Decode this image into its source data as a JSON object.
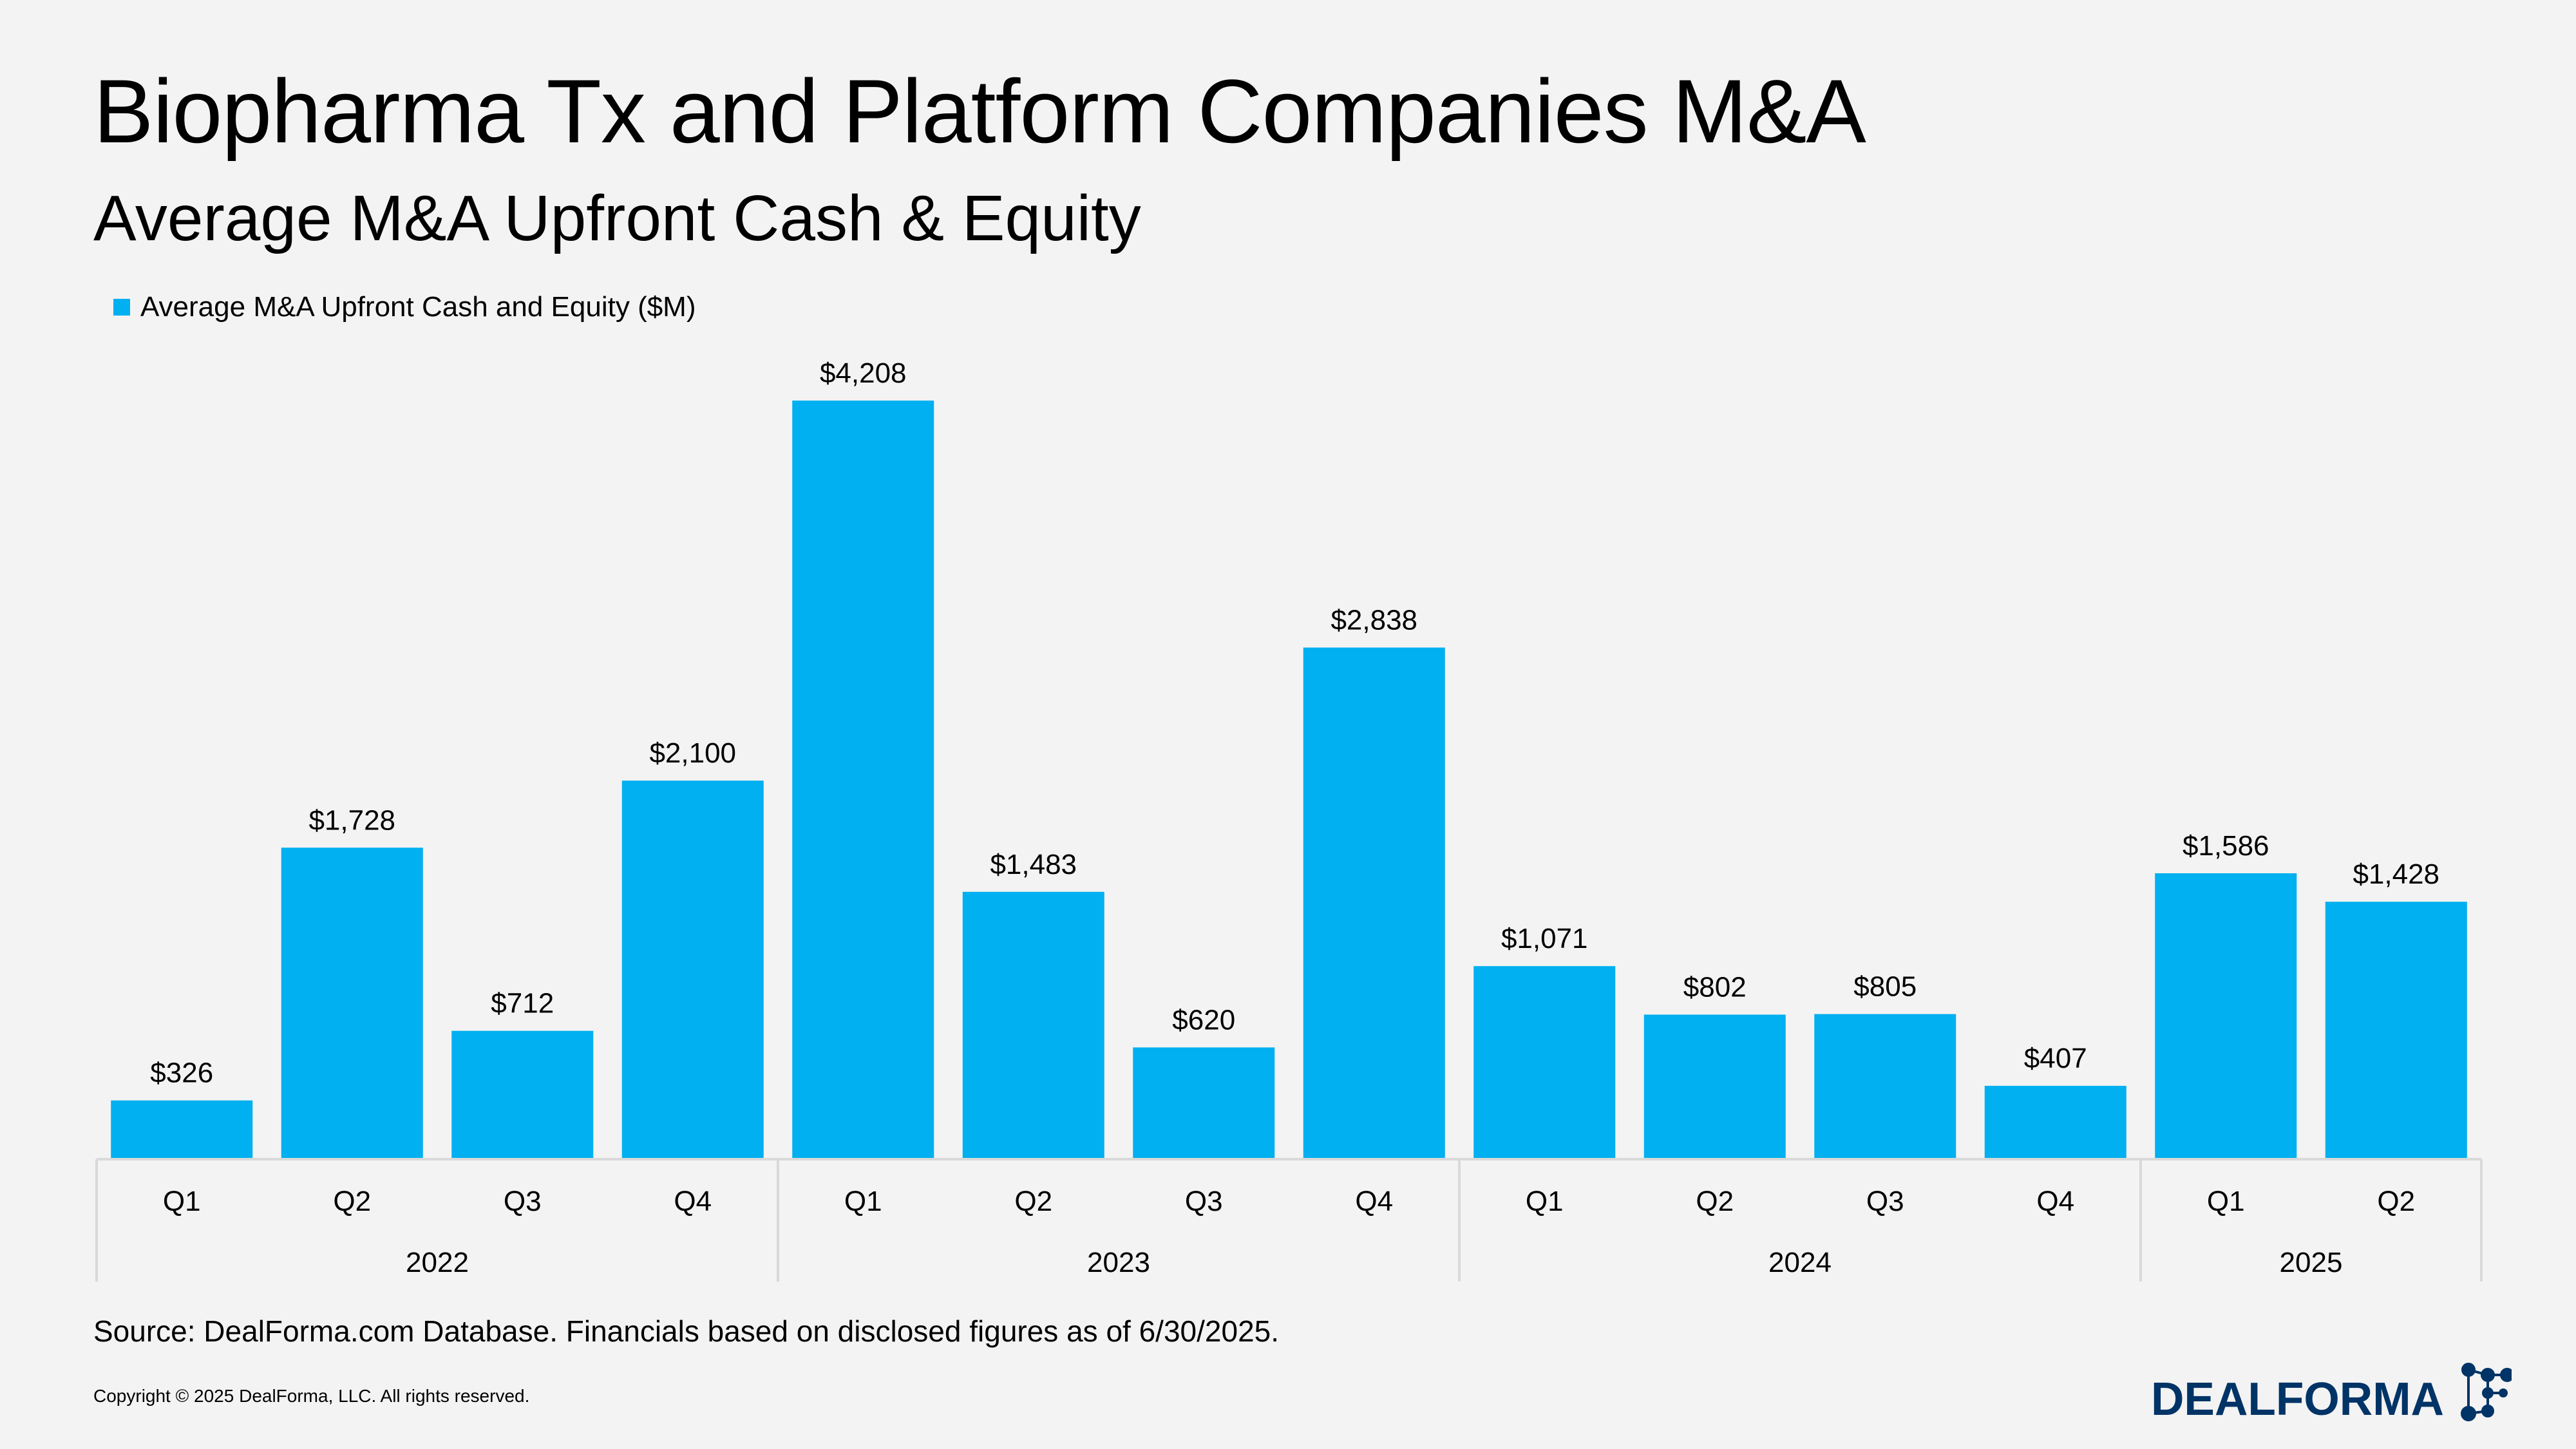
{
  "header": {
    "title": "Biopharma Tx and Platform Companies M&A",
    "subtitle": "Average M&A Upfront Cash & Equity"
  },
  "chart_data": {
    "type": "bar",
    "title": "Biopharma Tx and Platform Companies M&A",
    "subtitle": "Average M&A Upfront Cash & Equity",
    "legend": {
      "position": "top-left",
      "entries": [
        "Average M&A Upfront Cash and Equity ($M)"
      ]
    },
    "grid": false,
    "ylim": [
      0,
      4208
    ],
    "categories": [
      "Q1",
      "Q2",
      "Q3",
      "Q4",
      "Q1",
      "Q2",
      "Q3",
      "Q4",
      "Q1",
      "Q2",
      "Q3",
      "Q4",
      "Q1",
      "Q2"
    ],
    "groups": [
      {
        "label": "2022",
        "count": 4
      },
      {
        "label": "2023",
        "count": 4
      },
      {
        "label": "2024",
        "count": 4
      },
      {
        "label": "2025",
        "count": 2
      }
    ],
    "series": [
      {
        "name": "Average M&A Upfront Cash and Equity ($M)",
        "color": "#00b0f0",
        "values": [
          326,
          1728,
          712,
          2100,
          4208,
          1483,
          620,
          2838,
          1071,
          802,
          805,
          407,
          1586,
          1428
        ],
        "labels": [
          "$326",
          "$1,728",
          "$712",
          "$2,100",
          "$4,208",
          "$1,483",
          "$620",
          "$2,838",
          "$1,071",
          "$802",
          "$805",
          "$407",
          "$1,586",
          "$1,428"
        ]
      }
    ]
  },
  "footer": {
    "source": "Source: DealForma.com Database. Financials based on disclosed figures as of 6/30/2025.",
    "copyright": "Copyright © 2025 DealForma, LLC. All rights reserved.",
    "logo_text": "DEALFORMA",
    "logo_color": "#003366"
  },
  "colors": {
    "background": "#f3f3f3",
    "bar": "#00b0f0",
    "axis": "#d9d9d9"
  }
}
